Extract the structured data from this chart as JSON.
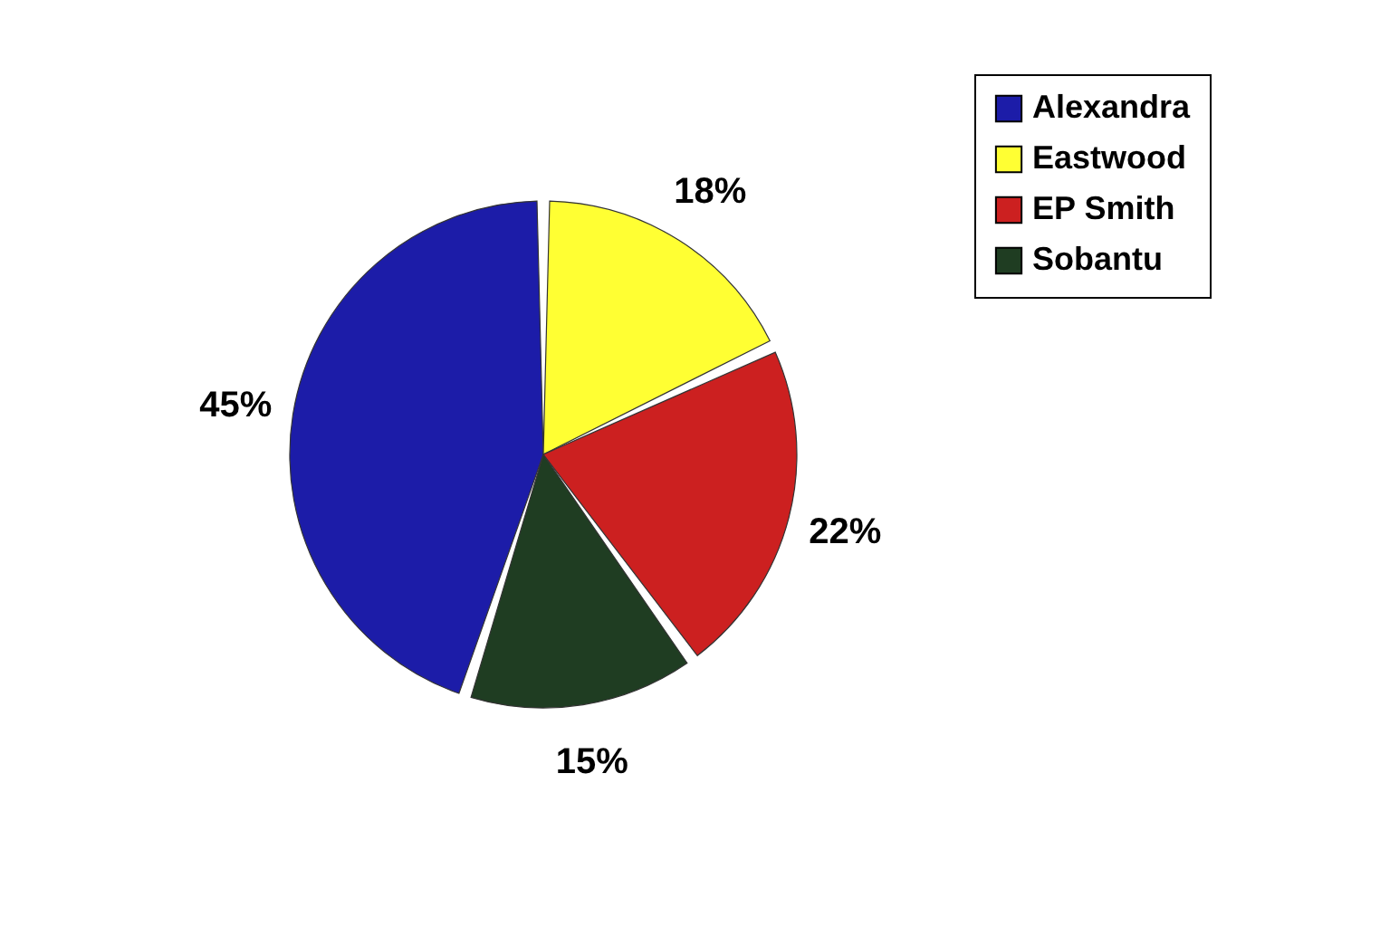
{
  "chart_data": {
    "type": "pie",
    "categories": [
      "Alexandra",
      "Eastwood",
      "EP Smith",
      "Sobantu"
    ],
    "values": [
      45,
      18,
      22,
      15
    ],
    "colors": [
      "#1c1ca8",
      "#ffff33",
      "#cc2020",
      "#1f3d22"
    ],
    "value_labels": [
      "45%",
      "18%",
      "22%",
      "15%"
    ],
    "legend": "right"
  }
}
